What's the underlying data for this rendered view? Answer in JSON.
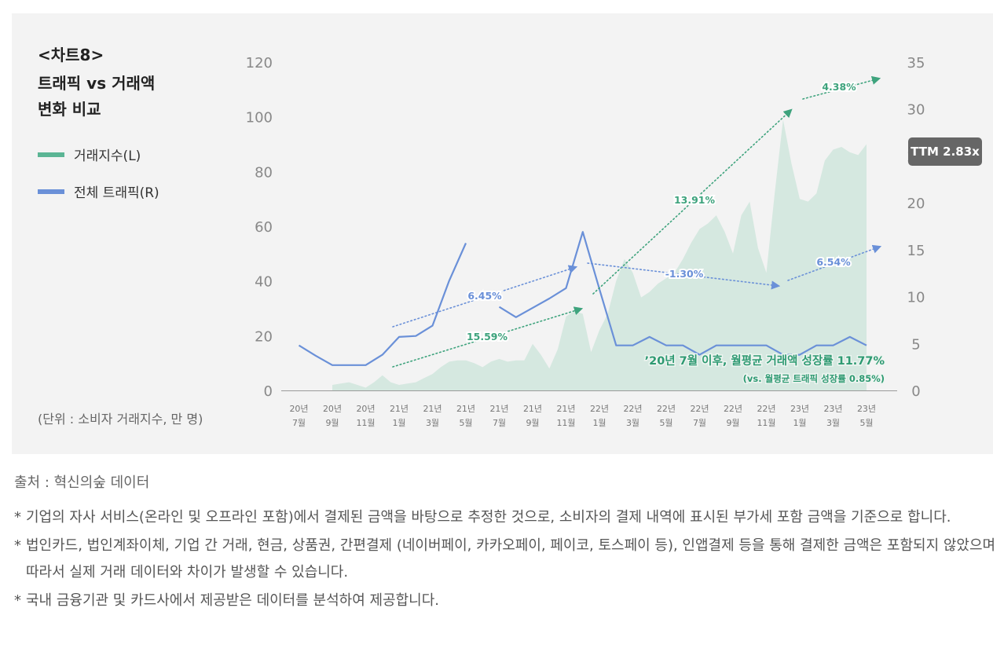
{
  "chart_label": "<차트8>",
  "chart_title_lines": [
    "트래픽 vs 거래액",
    "변화 비교"
  ],
  "legend": [
    {
      "label": "거래지수(L)",
      "color": "#5bb594"
    },
    {
      "label": "전체 트래픽(R)",
      "color": "#6a90d8"
    }
  ],
  "unit_note": "(단위 : 소비자 거래지수, 만 명)",
  "ttm_badge": "TTM 2.83x",
  "colors": {
    "area": "#d5e8e0",
    "traffic": "#6a90d8",
    "green": "#3ea37d",
    "blue": "#6a90d8"
  },
  "chart_data": {
    "type": "area+line",
    "x_labels": [
      [
        "20년",
        "7월"
      ],
      [
        "20년",
        "9월"
      ],
      [
        "20년",
        "11월"
      ],
      [
        "21년",
        "1월"
      ],
      [
        "21년",
        "3월"
      ],
      [
        "21년",
        "5월"
      ],
      [
        "21년",
        "7월"
      ],
      [
        "21년",
        "9월"
      ],
      [
        "21년",
        "11월"
      ],
      [
        "22년",
        "1월"
      ],
      [
        "22년",
        "3월"
      ],
      [
        "22년",
        "5월"
      ],
      [
        "22년",
        "7월"
      ],
      [
        "22년",
        "9월"
      ],
      [
        "22년",
        "11월"
      ],
      [
        "23년",
        "1월"
      ],
      [
        "23년",
        "3월"
      ],
      [
        "23년",
        "5월"
      ]
    ],
    "y_left": {
      "min": 0,
      "max": 120,
      "ticks": [
        0,
        20,
        40,
        60,
        80,
        100,
        120
      ]
    },
    "y_right": {
      "min": 0,
      "max": 35,
      "ticks": [
        0,
        5,
        10,
        15,
        20,
        25,
        30,
        35
      ]
    },
    "series": [
      {
        "name": "거래지수(L)",
        "axis": "left",
        "x": [
          3,
          3.5,
          4,
          4.5,
          5,
          5.5,
          6,
          6.5,
          7,
          7.5,
          8,
          8.5,
          9,
          9.5,
          10,
          10.5,
          11,
          11.5,
          12,
          12.5,
          13,
          13.5,
          14,
          14.5,
          15,
          15.5,
          16,
          16.5,
          17,
          17.5,
          18,
          18.5,
          19,
          19.5,
          20,
          20.5,
          21,
          21.5,
          22,
          22.5,
          23,
          23.5,
          24,
          24.5,
          25,
          25.5,
          26,
          26.5,
          27,
          27.5,
          28,
          28.5,
          29,
          29.5,
          30,
          30.5,
          31,
          31.5,
          32,
          32.5,
          33,
          33.5,
          34,
          34.5,
          35
        ],
        "y": [
          2,
          2.5,
          3,
          2,
          1,
          3,
          5.5,
          3,
          2,
          2.5,
          3,
          4.5,
          6,
          8.5,
          10.5,
          11,
          11,
          10,
          8.5,
          10.5,
          11.5,
          10.5,
          11,
          11,
          17,
          13,
          8,
          15,
          27,
          29,
          28,
          14,
          22,
          28,
          40,
          48,
          43,
          34,
          36,
          39,
          41,
          43,
          48,
          54,
          59,
          61,
          64,
          58,
          50,
          64,
          69,
          52,
          43,
          72,
          99,
          83,
          70,
          69,
          72,
          84,
          88,
          89,
          87,
          86,
          90
        ]
      },
      {
        "name": "전체 트래픽(R)",
        "axis": "right",
        "x": [
          1,
          2,
          3,
          4,
          5,
          6,
          7,
          8,
          9,
          10,
          11,
          12,
          13,
          14,
          15,
          16,
          17,
          18,
          19,
          20,
          21,
          22,
          23,
          24,
          25,
          26,
          27,
          28,
          29,
          30,
          31,
          32,
          33,
          34,
          35
        ],
        "y": [
          4.8,
          3.7,
          2.7,
          2.7,
          2.7,
          3.8,
          5.7,
          5.8,
          6.9,
          11.7,
          15.7,
          null,
          8.9,
          7.8,
          8.8,
          9.8,
          10.9,
          16.9,
          10.8,
          4.8,
          4.8,
          5.7,
          4.8,
          4.8,
          3.8,
          4.8,
          4.8,
          4.8,
          4.8,
          3.8,
          3.8,
          4.8,
          4.8,
          5.7,
          4.8
        ]
      }
    ],
    "trend_annotations": [
      {
        "label": "6.45%",
        "color": "blue"
      },
      {
        "label": "15.59%",
        "color": "green"
      },
      {
        "label": "13.91%",
        "color": "green"
      },
      {
        "label": "4.38%",
        "color": "green"
      },
      {
        "label": "-1.30%",
        "color": "blue"
      },
      {
        "label": "6.54%",
        "color": "blue"
      }
    ],
    "note_main": "’20년 7월 이후, 월평균 거래액 성장률 11.77%",
    "note_sub": "(vs. 월평균 트래픽 성장률 0.85%)"
  },
  "source": "출처 : 혁신의숲 데이터",
  "notes": [
    "기업의 자사 서비스(온라인 및 오프라인 포함)에서 결제된 금액을 바탕으로 추정한 것으로, 소비자의 결제 내역에 표시된 부가세 포함 금액을 기준으로 합니다.",
    "법인카드, 법인계좌이체, 기업 간 거래, 현금, 상품권, 간편결제 (네이버페이, 카카오페이, 페이코, 토스페이 등), 인앱결제 등을 통해 결제한 금액은 포함되지 않았으며 따라서 실제 거래 데이터와 차이가 발생할 수 있습니다.",
    "국내 금융기관 및 카드사에서 제공받은 데이터를 분석하여 제공합니다."
  ],
  "note_marker": "*"
}
